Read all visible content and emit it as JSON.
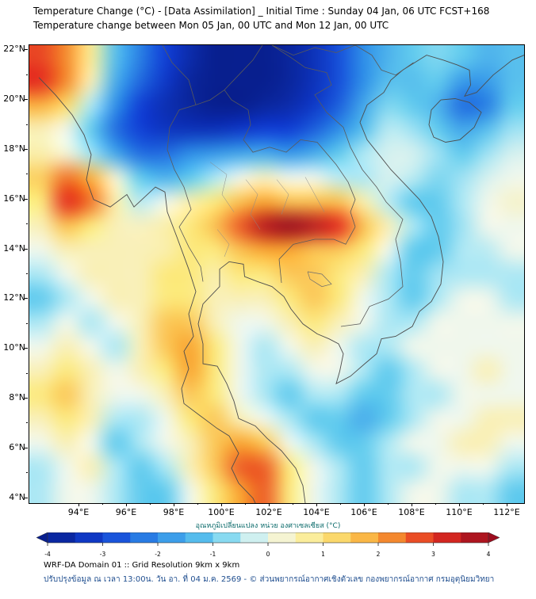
{
  "header": {
    "title_line1": "Temperature Change (°C) - [Data Assimilation] _ Initial Time : Sunday 04 Jan, 06 UTC FCST+168",
    "title_line2": "Temperature change between Mon 05 Jan, 00 UTC and Mon 12 Jan, 00 UTC"
  },
  "chart_data": {
    "type": "heatmap",
    "title": "Temperature Change (°C) - [Data Assimilation] _ Initial Time : Sunday 04 Jan, 06 UTC FCST+168",
    "subtitle": "Temperature change between Mon 05 Jan, 00 UTC and Mon 12 Jan, 00 UTC",
    "units": "°C",
    "x_tick_labels": [
      "94°E",
      "96°E",
      "98°E",
      "100°E",
      "102°E",
      "104°E",
      "106°E",
      "108°E",
      "110°E",
      "112°E"
    ],
    "y_tick_labels": [
      "22°N",
      "20°N",
      "18°N",
      "16°N",
      "14°N",
      "12°N",
      "10°N",
      "8°N",
      "6°N",
      "4°N"
    ],
    "lon_ticks": [
      94,
      96,
      98,
      100,
      102,
      104,
      106,
      108,
      110,
      112
    ],
    "lat_ticks": [
      22,
      20,
      18,
      16,
      14,
      12,
      10,
      8,
      6,
      4
    ],
    "lon_range": [
      91.9,
      112.7
    ],
    "lat_range": [
      3.8,
      22.2
    ],
    "grid": {
      "lon_start": 93,
      "lon_step": 1,
      "lat_start": 22,
      "lat_step": -1,
      "values": [
        [
          2.8,
          2.2,
          0.8,
          -1.2,
          -2.2,
          -3.0,
          -3.6,
          -4.0,
          -4.0,
          -4.0,
          -3.8,
          -3.4,
          -2.8,
          -2.0,
          -1.4,
          -1.0,
          -0.8,
          -1.0,
          -1.4,
          -1.2
        ],
        [
          3.0,
          2.2,
          0.5,
          -1.5,
          -2.5,
          -3.2,
          -3.8,
          -4.0,
          -4.0,
          -4.0,
          -3.8,
          -3.4,
          -2.8,
          -2.0,
          -1.2,
          -1.2,
          -1.0,
          -1.8,
          -1.8,
          -1.2
        ],
        [
          1.8,
          1.2,
          -0.5,
          -2.0,
          -3.0,
          -3.5,
          -3.8,
          -4.0,
          -4.0,
          -3.8,
          -3.6,
          -3.2,
          -2.6,
          -1.6,
          -0.8,
          -1.0,
          -1.4,
          -2.4,
          -2.2,
          -1.0
        ],
        [
          0.5,
          0.0,
          -1.0,
          -2.4,
          -3.0,
          -3.3,
          -3.4,
          -3.4,
          -3.2,
          -3.0,
          -3.0,
          -2.6,
          -2.0,
          -1.2,
          -0.4,
          -0.6,
          -1.0,
          -1.6,
          -1.2,
          -0.6
        ],
        [
          0.6,
          0.2,
          -0.6,
          -1.6,
          -2.4,
          -2.4,
          -2.0,
          -1.8,
          -1.6,
          -1.5,
          -1.8,
          -1.5,
          -1.0,
          -0.5,
          -0.2,
          -0.2,
          -0.6,
          -1.0,
          -0.6,
          -0.2
        ],
        [
          1.4,
          2.4,
          1.8,
          0.2,
          -1.0,
          -1.4,
          -1.0,
          -0.5,
          0.0,
          0.4,
          0.0,
          0.0,
          -0.4,
          -0.5,
          -0.2,
          -0.4,
          -0.8,
          -0.6,
          -0.2,
          0.0
        ],
        [
          1.0,
          3.0,
          2.4,
          0.6,
          -0.4,
          0.0,
          0.6,
          1.0,
          1.6,
          2.0,
          1.6,
          1.6,
          1.6,
          0.6,
          -0.4,
          -1.0,
          -1.0,
          -0.5,
          0.0,
          0.3
        ],
        [
          0.5,
          1.6,
          1.0,
          0.5,
          0.4,
          0.6,
          1.0,
          1.6,
          2.6,
          3.6,
          4.0,
          3.6,
          3.0,
          1.6,
          0.5,
          -0.5,
          -1.0,
          -0.6,
          0.0,
          0.0
        ],
        [
          0.0,
          0.5,
          0.5,
          0.5,
          0.5,
          0.6,
          1.0,
          1.0,
          1.6,
          2.0,
          2.0,
          1.6,
          1.5,
          1.0,
          0.0,
          -1.0,
          -1.0,
          -0.5,
          -0.4,
          0.0
        ],
        [
          -0.5,
          0.0,
          0.5,
          0.5,
          0.5,
          1.0,
          1.0,
          0.6,
          1.0,
          1.0,
          1.5,
          1.5,
          1.0,
          0.5,
          -0.5,
          -1.0,
          -0.6,
          -0.5,
          -0.5,
          -0.5
        ],
        [
          -1.0,
          -0.5,
          0.0,
          0.5,
          0.5,
          1.0,
          1.0,
          0.5,
          0.5,
          0.5,
          1.0,
          1.5,
          1.0,
          0.0,
          -0.5,
          -1.0,
          -0.5,
          0.0,
          0.0,
          -0.5
        ],
        [
          -0.5,
          0.0,
          -0.5,
          0.0,
          0.5,
          1.5,
          1.5,
          0.5,
          0.0,
          0.0,
          0.5,
          1.0,
          0.5,
          0.0,
          -0.5,
          -0.5,
          0.0,
          0.0,
          0.0,
          0.0
        ],
        [
          0.0,
          0.5,
          0.0,
          -0.5,
          0.5,
          1.5,
          2.0,
          1.0,
          0.0,
          -0.5,
          0.0,
          0.5,
          0.0,
          -0.5,
          -0.5,
          0.0,
          0.0,
          0.0,
          0.0,
          0.0
        ],
        [
          0.5,
          1.0,
          0.5,
          0.0,
          0.5,
          1.0,
          2.0,
          1.0,
          0.0,
          -0.5,
          -0.5,
          0.0,
          0.0,
          -0.5,
          -1.0,
          -0.5,
          0.0,
          0.0,
          0.5,
          0.0
        ],
        [
          1.0,
          1.5,
          0.5,
          0.0,
          0.0,
          0.5,
          1.5,
          1.0,
          0.0,
          -0.5,
          -1.0,
          -0.5,
          -0.5,
          -1.0,
          -1.0,
          -0.5,
          -0.5,
          0.0,
          0.0,
          0.0
        ],
        [
          0.5,
          1.0,
          0.5,
          -0.5,
          -0.5,
          0.0,
          1.0,
          1.5,
          0.5,
          0.0,
          -0.5,
          -1.0,
          -1.0,
          -1.5,
          -1.0,
          -0.5,
          0.0,
          0.0,
          0.5,
          0.5
        ],
        [
          0.0,
          0.5,
          0.0,
          -1.0,
          -0.5,
          0.0,
          0.5,
          1.5,
          2.0,
          1.5,
          0.0,
          -0.5,
          -1.0,
          -1.0,
          -0.5,
          0.0,
          0.0,
          0.5,
          0.5,
          0.0
        ],
        [
          -0.5,
          0.0,
          0.5,
          -0.5,
          -1.0,
          -0.5,
          0.5,
          1.5,
          2.6,
          2.6,
          1.0,
          0.0,
          -0.5,
          -1.0,
          -0.5,
          -0.5,
          0.0,
          0.0,
          0.0,
          -0.5
        ],
        [
          -0.5,
          0.0,
          0.0,
          -0.5,
          -1.0,
          -1.0,
          0.0,
          1.0,
          2.0,
          2.6,
          1.0,
          0.0,
          -0.5,
          -1.0,
          -0.5,
          0.0,
          0.0,
          -0.5,
          -0.5,
          -1.0
        ]
      ]
    },
    "colorbar": {
      "label": "อุณหภูมิเปลี่ยนแปลง หน่วย องศาเซลเซียส (°C)",
      "label_color": "#0a6a6a",
      "min": -4,
      "max": 4,
      "segment_step": 0.5,
      "tick_values": [
        -4,
        -3,
        -2,
        -1,
        0,
        1,
        2,
        3,
        4
      ],
      "tick_labels": [
        "-4",
        "-3",
        "-2",
        "-1",
        "0",
        "1",
        "2",
        "3",
        "4"
      ],
      "stops": [
        [
          -4,
          "#081f8f"
        ],
        [
          -3,
          "#1140d6"
        ],
        [
          -2,
          "#2f8fe8"
        ],
        [
          -1,
          "#62cbee"
        ],
        [
          -0.5,
          "#aee8f4"
        ],
        [
          0,
          "#f0f7ec"
        ],
        [
          0.5,
          "#f9f0b8"
        ],
        [
          1,
          "#fce97e"
        ],
        [
          2,
          "#f9a633"
        ],
        [
          3,
          "#e52f20"
        ],
        [
          4,
          "#9c0c1e"
        ]
      ]
    }
  },
  "footer": {
    "line1": "WRF-DA Domain 01 :: Grid Resolution 9km x 9km",
    "line2": "ปรับปรุงข้อมูล ณ เวลา 13:00น. วัน อา. ที่ 04 ม.ค. 2569 - © ส่วนพยากรณ์อากาศเชิงตัวเลข กองพยากรณ์อากาศ กรมอุตุนิยมวิทยา",
    "line2_color": "#1f4e8f"
  }
}
